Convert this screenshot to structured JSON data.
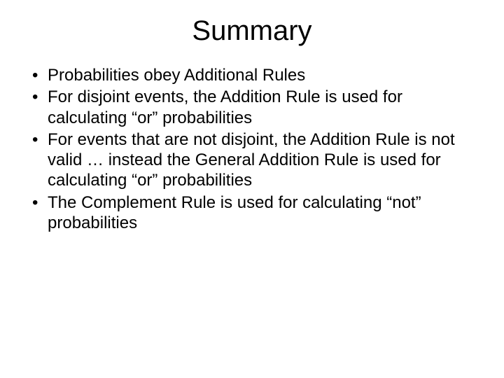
{
  "slide": {
    "title": "Summary",
    "title_fontsize": 40,
    "body_fontsize": 24,
    "background_color": "#ffffff",
    "text_color": "#000000",
    "font_family": "Arial",
    "bullets": [
      "Probabilities obey Additional Rules",
      "For disjoint events, the Addition Rule is used for calculating “or” probabilities",
      "For events that are not disjoint, the Addition Rule is not valid … instead the General Addition Rule is used for calculating “or” probabilities",
      "The Complement Rule is used for calculating “not” probabilities"
    ]
  }
}
